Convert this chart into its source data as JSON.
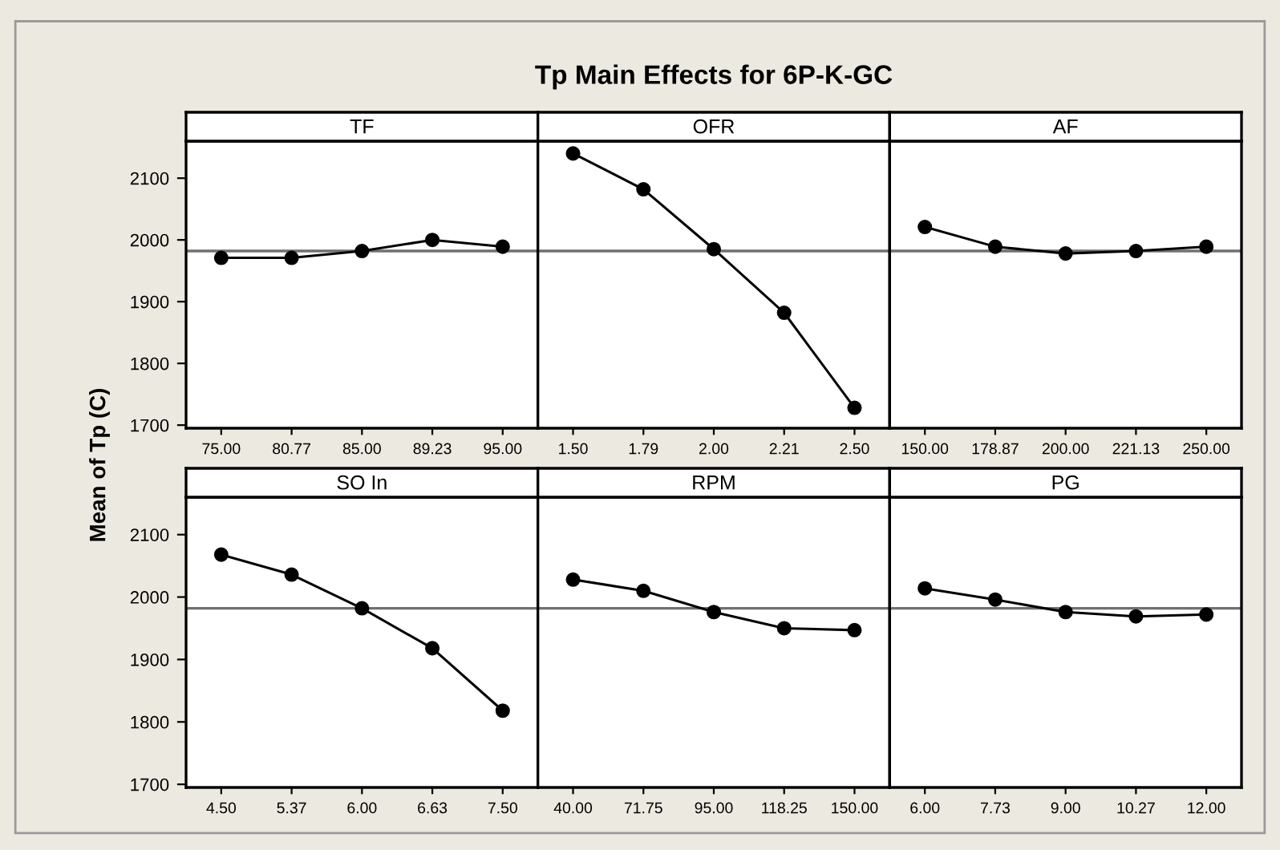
{
  "chart_data": [
    {
      "type": "line",
      "subtitle": "TF",
      "ylabel": "Mean of Tp (C)",
      "categories": [
        "75.00",
        "80.77",
        "85.00",
        "89.23",
        "95.00"
      ],
      "values": [
        1971,
        1971,
        1982,
        2000,
        1989
      ],
      "color": "#000000",
      "marker": "circle",
      "ylim": [
        1695,
        2160
      ],
      "yticks": [
        1700,
        1800,
        1900,
        2000,
        2100
      ],
      "ref_lines": [
        {
          "axis": "y",
          "value": 1982,
          "color": "#707070"
        }
      ],
      "grid": false,
      "legend": false
    },
    {
      "type": "line",
      "title": "Tp Main Effects for 6P-K-GC",
      "subtitle": "OFR",
      "categories": [
        "1.50",
        "1.79",
        "2.00",
        "2.21",
        "2.50"
      ],
      "values": [
        2140,
        2082,
        1985,
        1882,
        1728
      ],
      "color": "#000000",
      "marker": "circle",
      "ylim": [
        1695,
        2160
      ],
      "yticks": [
        1700,
        1800,
        1900,
        2000,
        2100
      ],
      "tick_labels": "x",
      "ref_lines": [
        {
          "axis": "y",
          "value": 1982,
          "color": "#707070"
        }
      ],
      "grid": false,
      "legend": false
    },
    {
      "type": "line",
      "subtitle": "AF",
      "categories": [
        "150.00",
        "178.87",
        "200.00",
        "221.13",
        "250.00"
      ],
      "values": [
        2021,
        1989,
        1978,
        1982,
        1989
      ],
      "color": "#000000",
      "marker": "circle",
      "ylim": [
        1695,
        2160
      ],
      "yticks": [
        1700,
        1800,
        1900,
        2000,
        2100
      ],
      "tick_labels": "x",
      "ref_lines": [
        {
          "axis": "y",
          "value": 1982,
          "color": "#707070"
        }
      ],
      "grid": false,
      "legend": false
    },
    {
      "type": "line",
      "subtitle": "SO In",
      "categories": [
        "4.50",
        "5.37",
        "6.00",
        "6.63",
        "7.50"
      ],
      "values": [
        2068,
        2036,
        1982,
        1918,
        1818
      ],
      "color": "#000000",
      "marker": "circle",
      "ylim": [
        1695,
        2160
      ],
      "yticks": [
        1700,
        1800,
        1900,
        2000,
        2100
      ],
      "ref_lines": [
        {
          "axis": "y",
          "value": 1982,
          "color": "#707070"
        }
      ],
      "grid": false,
      "legend": false
    },
    {
      "type": "line",
      "subtitle": "RPM",
      "categories": [
        "40.00",
        "71.75",
        "95.00",
        "118.25",
        "150.00"
      ],
      "values": [
        2028,
        2010,
        1976,
        1950,
        1947
      ],
      "color": "#000000",
      "marker": "circle",
      "ylim": [
        1695,
        2160
      ],
      "yticks": [
        1700,
        1800,
        1900,
        2000,
        2100
      ],
      "tick_labels": "x",
      "ref_lines": [
        {
          "axis": "y",
          "value": 1982,
          "color": "#707070"
        }
      ],
      "grid": false,
      "legend": false
    },
    {
      "type": "line",
      "subtitle": "PG",
      "categories": [
        "6.00",
        "7.73",
        "9.00",
        "10.27",
        "12.00"
      ],
      "values": [
        2014,
        1996,
        1976,
        1969,
        1972
      ],
      "color": "#000000",
      "marker": "circle",
      "ylim": [
        1695,
        2160
      ],
      "yticks": [
        1700,
        1800,
        1900,
        2000,
        2100
      ],
      "tick_labels": "x",
      "ref_lines": [
        {
          "axis": "y",
          "value": 1982,
          "color": "#707070"
        }
      ],
      "grid": false,
      "legend": false
    }
  ]
}
